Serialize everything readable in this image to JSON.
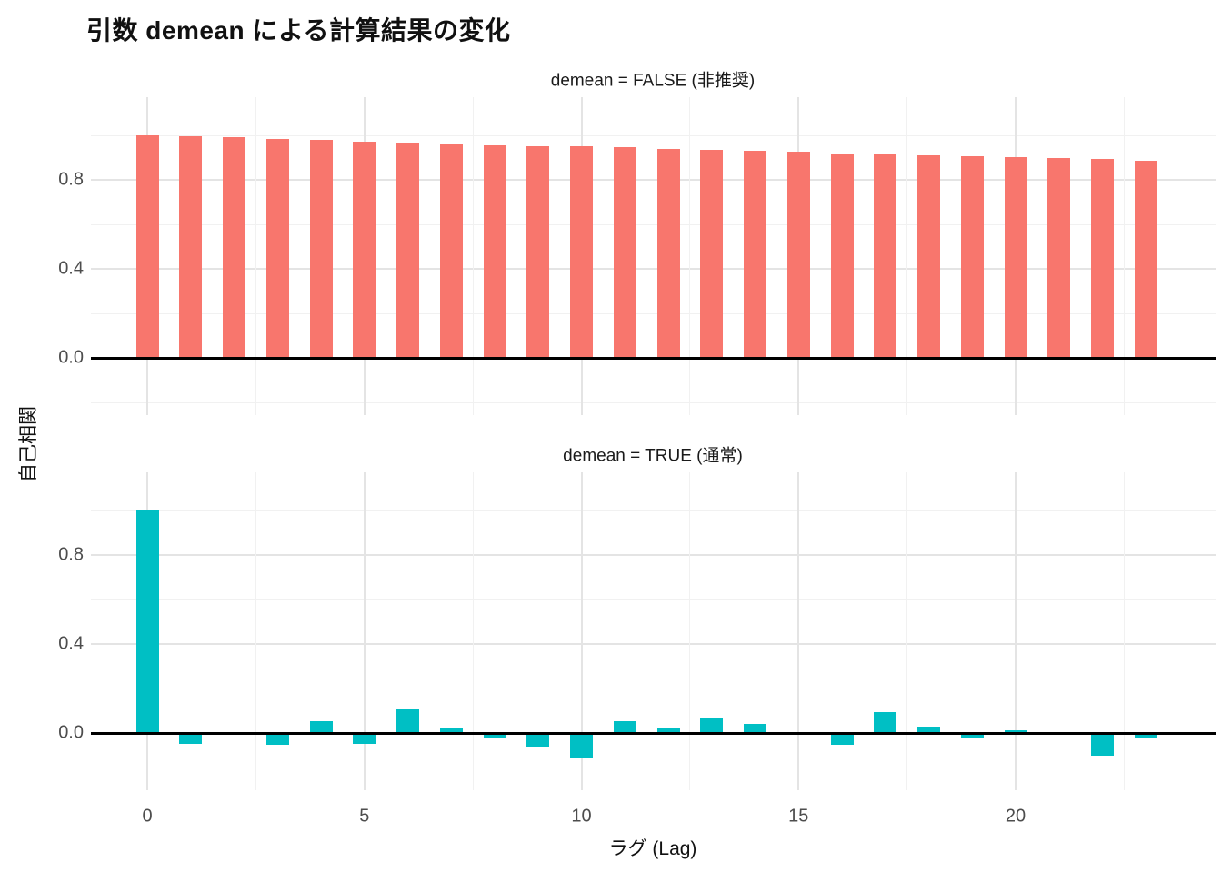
{
  "page": {
    "title": "引数 demean による計算結果の変化",
    "x_axis_title": "ラグ (Lag)",
    "y_axis_title": "自己相関"
  },
  "colors": {
    "bar_false": "#F8766D",
    "bar_true": "#00BFC4",
    "grid_major": "#E4E4E4",
    "grid_minor": "#F1F1F1",
    "zero_line": "#000000",
    "tick_label": "#4D4D4D",
    "text": "#111111"
  },
  "axes": {
    "x_tick_labels": [
      "0",
      "5",
      "10",
      "15",
      "20"
    ],
    "x_tick_values": [
      0,
      5,
      10,
      15,
      20
    ],
    "x_minor_values": [
      2.5,
      7.5,
      12.5,
      17.5,
      22.5
    ],
    "y_tick_labels": [
      "0.0",
      "0.4",
      "0.8"
    ],
    "y_tick_values": [
      0,
      0.4,
      0.8
    ],
    "y_minor_values": [
      -0.2,
      0.2,
      0.6,
      1.0
    ]
  },
  "chart_data": [
    {
      "type": "bar",
      "panel_label": "demean = FALSE (非推奨)",
      "bar_color": "#F8766D",
      "x": [
        0,
        1,
        2,
        3,
        4,
        5,
        6,
        7,
        8,
        9,
        10,
        11,
        12,
        13,
        14,
        15,
        16,
        17,
        18,
        19,
        20,
        21,
        22,
        23
      ],
      "values": [
        1.0,
        0.995,
        0.99,
        0.985,
        0.978,
        0.973,
        0.967,
        0.961,
        0.956,
        0.953,
        0.949,
        0.945,
        0.938,
        0.935,
        0.931,
        0.926,
        0.92,
        0.913,
        0.91,
        0.905,
        0.902,
        0.896,
        0.892,
        0.886
      ],
      "xlabel": "ラグ (Lag)",
      "ylabel": "自己相関",
      "ylim": [
        -0.26,
        1.17
      ],
      "grid": true,
      "legend": false
    },
    {
      "type": "bar",
      "panel_label": "demean = TRUE (通常)",
      "bar_color": "#00BFC4",
      "x": [
        0,
        1,
        2,
        3,
        4,
        5,
        6,
        7,
        8,
        9,
        10,
        11,
        12,
        13,
        14,
        15,
        16,
        17,
        18,
        19,
        20,
        21,
        22,
        23
      ],
      "values": [
        1.0,
        -0.05,
        0.0,
        -0.055,
        0.055,
        -0.05,
        0.105,
        0.025,
        -0.025,
        -0.06,
        -0.11,
        0.055,
        0.02,
        0.065,
        0.04,
        0.0,
        -0.055,
        0.095,
        0.027,
        -0.02,
        0.012,
        0.0,
        -0.1,
        -0.02
      ],
      "xlabel": "ラグ (Lag)",
      "ylabel": "自己相関",
      "ylim": [
        -0.26,
        1.17
      ],
      "grid": true,
      "legend": false
    }
  ]
}
